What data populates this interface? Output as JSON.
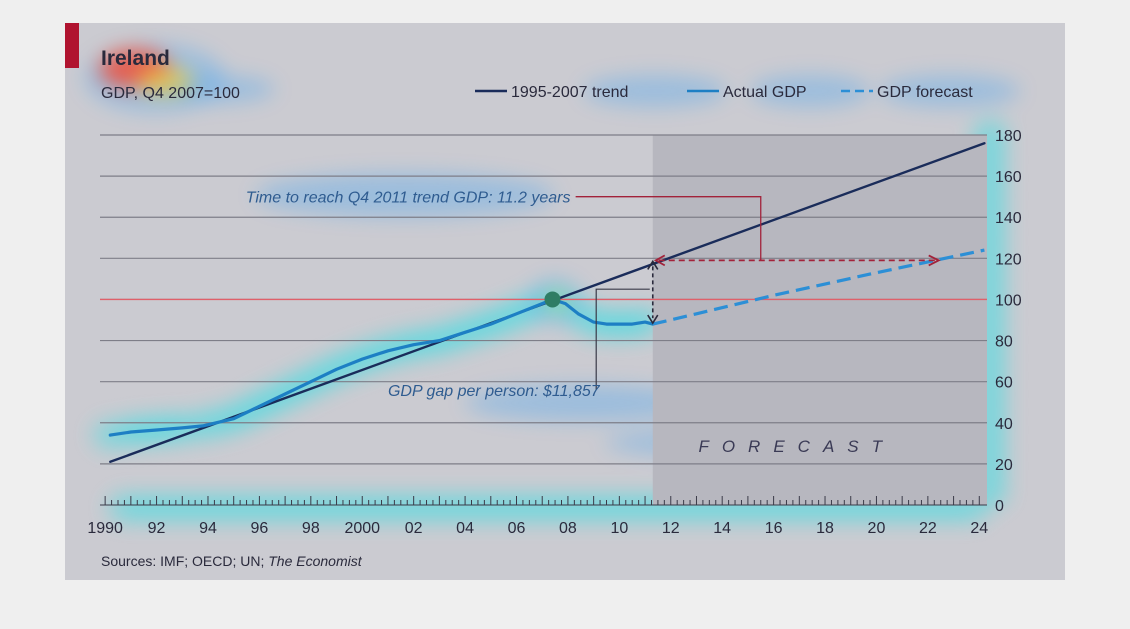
{
  "chart_data": {
    "type": "line",
    "title": "Ireland",
    "subtitle": "GDP, Q4 2007=100",
    "source": "Sources: IMF; OECD; UN; The Economist",
    "source_plain": "Sources: IMF; OECD; UN; ",
    "source_italic": "The Economist",
    "x_tick_labels": [
      "1990",
      "92",
      "94",
      "96",
      "98",
      "2000",
      "02",
      "04",
      "06",
      "08",
      "10",
      "12",
      "14",
      "16",
      "18",
      "20",
      "22",
      "24"
    ],
    "x_tick_years": [
      1990,
      1992,
      1994,
      1996,
      1998,
      2000,
      2002,
      2004,
      2006,
      2008,
      2010,
      2012,
      2014,
      2016,
      2018,
      2020,
      2022,
      2024
    ],
    "xlim": [
      1989.8,
      2024.3
    ],
    "y_ticks": [
      0,
      20,
      40,
      60,
      80,
      100,
      120,
      140,
      160,
      180
    ],
    "ylim": [
      0,
      180
    ],
    "grid": true,
    "legend_position": "top-right",
    "forecast_start": 2011.3,
    "forecast_label": "FORECAST",
    "series": [
      {
        "name": "1995-2007 trend",
        "style": "solid",
        "color": "#1a2c5a",
        "x": [
          1990.2,
          2024.2
        ],
        "y": [
          21,
          176
        ]
      },
      {
        "name": "Actual GDP",
        "style": "solid",
        "color": "#1d7fc4",
        "x": [
          1990.2,
          1991,
          1992,
          1993,
          1993.8,
          1995,
          1996,
          1997,
          1998,
          1999,
          2000,
          2001,
          2002,
          2003,
          2004,
          2005,
          2006,
          2007,
          2007.4,
          2007.9,
          2008.4,
          2009,
          2009.5,
          2010,
          2010.5,
          2011,
          2011.3
        ],
        "y": [
          34,
          35.5,
          36.5,
          37.5,
          38.5,
          42,
          48,
          54,
          60,
          66,
          71,
          75,
          78,
          80,
          84,
          88,
          93,
          98,
          100,
          98,
          93,
          89,
          88,
          88,
          88,
          89,
          88
        ]
      },
      {
        "name": "GDP forecast",
        "style": "dashed",
        "color": "#2c8fd6",
        "x": [
          2011.3,
          2013,
          2016,
          2020,
          2024.2
        ],
        "y": [
          88,
          93,
          102,
          113,
          124
        ]
      }
    ],
    "reference_line": {
      "y": 100,
      "color": "#e0606a"
    },
    "annotations": {
      "time_to_trend": "Time to reach Q4 2011 trend GDP: 11.2 years",
      "gdp_gap": "GDP gap per person: $11,857"
    },
    "marker": {
      "x": 2007.4,
      "y": 100,
      "color": "#2f7d64"
    },
    "gap_arrow": {
      "x": 2011.3,
      "y_top": 119,
      "y_bottom": 88
    },
    "time_arrow": {
      "y": 119,
      "x_start": 2011.3,
      "x_end": 2022.5
    },
    "colors": {
      "card": "#cbcbd1",
      "forecast_shade": "#b7b7bf",
      "gridline": "#7e7e88",
      "accent_red": "#b0132f",
      "annotation_red": "#a2223a"
    }
  }
}
